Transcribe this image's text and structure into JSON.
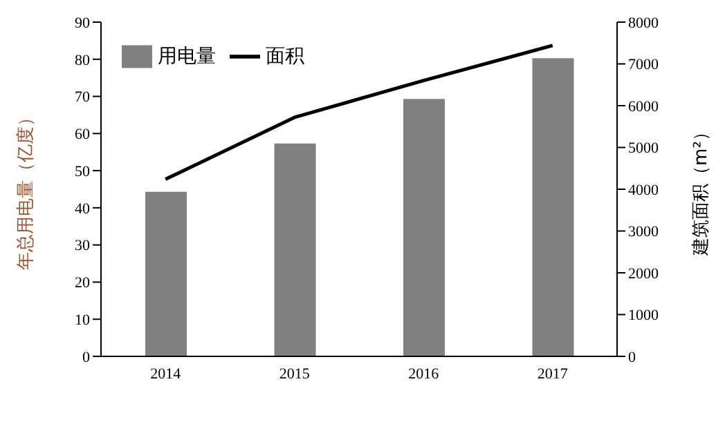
{
  "chart_data": {
    "type": "bar",
    "categories": [
      "2014",
      "2015",
      "2016",
      "2017"
    ],
    "series": [
      {
        "name": "用电量",
        "color": "#808080",
        "values": [
          44.3,
          57.3,
          69.3,
          80.3
        ]
      },
      {
        "name": "面积",
        "type": "line",
        "color": "#000000",
        "axis": "y2",
        "values": [
          4240,
          5720,
          6600,
          7440
        ]
      }
    ],
    "ylabel": "年总用电量（亿度）",
    "y2label": "建筑面积（m²）",
    "ylim": [
      0,
      90
    ],
    "yticks": [
      0,
      10,
      20,
      30,
      40,
      50,
      60,
      70,
      80,
      90
    ],
    "y2lim": [
      0,
      8000
    ],
    "y2ticks": [
      0,
      1000,
      2000,
      3000,
      4000,
      5000,
      6000,
      7000,
      8000
    ],
    "legend": "top left",
    "grid": false,
    "marker": "none",
    "line_style": "solid"
  }
}
